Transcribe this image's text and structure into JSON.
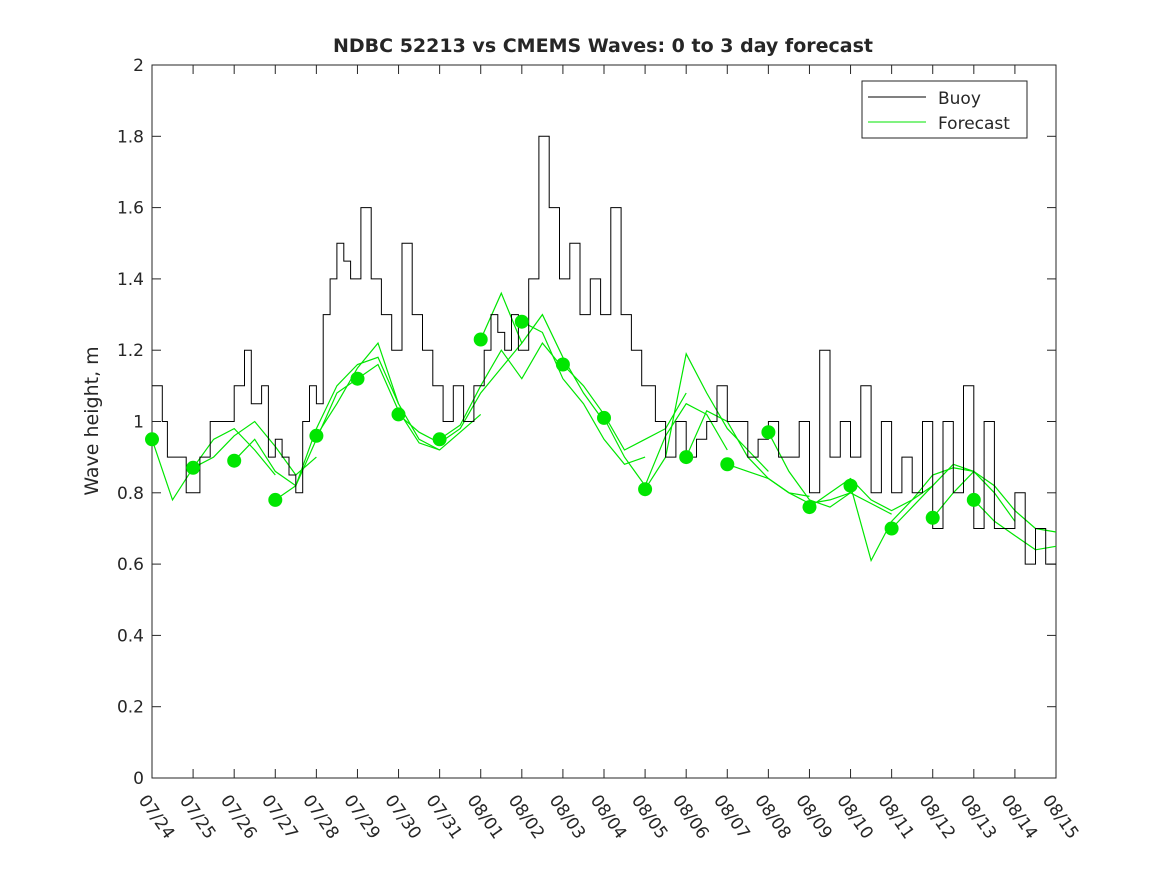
{
  "chart_data": {
    "type": "line",
    "title": "NDBC 52213 vs CMEMS Waves: 0 to 3 day forecast",
    "xlabel": "",
    "ylabel": "Wave height, m",
    "ylim": [
      0,
      2
    ],
    "yticks": [
      0,
      0.2,
      0.4,
      0.6,
      0.8,
      1,
      1.2,
      1.4,
      1.6,
      1.8,
      2
    ],
    "ytick_labels": [
      "0",
      "0.2",
      "0.4",
      "0.6",
      "0.8",
      "1",
      "1.2",
      "1.4",
      "1.6",
      "1.8",
      "2"
    ],
    "xlim": [
      "07/24",
      "08/15"
    ],
    "xtick_labels": [
      "07/24",
      "07/25",
      "07/26",
      "07/27",
      "07/28",
      "07/29",
      "07/30",
      "07/31",
      "08/01",
      "08/02",
      "08/03",
      "08/04",
      "08/05",
      "08/06",
      "08/07",
      "08/08",
      "08/09",
      "08/10",
      "08/11",
      "08/12",
      "08/13",
      "08/14",
      "08/15"
    ],
    "grid": false,
    "legend_position": "top-right",
    "colors": {
      "buoy": "#000000",
      "forecast": "#00e600",
      "axis": "#262626"
    },
    "series": [
      {
        "name": "Buoy",
        "x": [
          "07/24 00:00",
          "07/24 06:00",
          "07/24 09:00",
          "07/24 14:00",
          "07/24 20:00",
          "07/25 04:00",
          "07/25 10:00",
          "07/25 16:00",
          "07/26 00:00",
          "07/26 06:00",
          "07/26 10:00",
          "07/26 16:00",
          "07/26 20:00",
          "07/27 00:00",
          "07/27 04:00",
          "07/27 08:00",
          "07/27 12:00",
          "07/27 16:00",
          "07/27 20:00",
          "07/28 00:00",
          "07/28 04:00",
          "07/28 08:00",
          "07/28 12:00",
          "07/28 16:00",
          "07/28 20:00",
          "07/29 02:00",
          "07/29 08:00",
          "07/29 14:00",
          "07/29 20:00",
          "07/30 02:00",
          "07/30 08:00",
          "07/30 14:00",
          "07/30 20:00",
          "07/31 02:00",
          "07/31 08:00",
          "07/31 14:00",
          "07/31 20:00",
          "08/01 02:00",
          "08/01 06:00",
          "08/01 10:00",
          "08/01 14:00",
          "08/01 18:00",
          "08/01 22:00",
          "08/02 04:00",
          "08/02 10:00",
          "08/02 16:00",
          "08/02 22:00",
          "08/03 04:00",
          "08/03 10:00",
          "08/03 16:00",
          "08/03 22:00",
          "08/04 04:00",
          "08/04 10:00",
          "08/04 16:00",
          "08/04 22:00",
          "08/05 06:00",
          "08/05 12:00",
          "08/05 18:00",
          "08/06 00:00",
          "08/06 06:00",
          "08/06 12:00",
          "08/06 18:00",
          "08/07 00:00",
          "08/07 06:00",
          "08/07 12:00",
          "08/07 18:00",
          "08/08 00:00",
          "08/08 06:00",
          "08/08 12:00",
          "08/08 18:00",
          "08/09 00:00",
          "08/09 06:00",
          "08/09 12:00",
          "08/09 18:00",
          "08/10 00:00",
          "08/10 06:00",
          "08/10 12:00",
          "08/10 18:00",
          "08/11 00:00",
          "08/11 06:00",
          "08/11 12:00",
          "08/11 18:00",
          "08/12 00:00",
          "08/12 06:00",
          "08/12 12:00",
          "08/12 18:00",
          "08/13 00:00",
          "08/13 06:00",
          "08/13 12:00",
          "08/13 18:00",
          "08/14 00:00",
          "08/14 06:00",
          "08/14 12:00",
          "08/14 18:00"
        ],
        "values": [
          1.1,
          1.0,
          0.9,
          0.9,
          0.8,
          0.9,
          1.0,
          1.0,
          1.1,
          1.2,
          1.05,
          1.1,
          0.9,
          0.95,
          0.9,
          0.85,
          0.8,
          1.0,
          1.1,
          1.05,
          1.3,
          1.4,
          1.5,
          1.45,
          1.4,
          1.6,
          1.4,
          1.3,
          1.2,
          1.5,
          1.3,
          1.2,
          1.1,
          1.0,
          1.1,
          1.0,
          1.1,
          1.2,
          1.3,
          1.25,
          1.2,
          1.3,
          1.2,
          1.4,
          1.8,
          1.6,
          1.4,
          1.5,
          1.3,
          1.4,
          1.3,
          1.6,
          1.3,
          1.2,
          1.1,
          1.0,
          0.9,
          1.0,
          0.9,
          0.95,
          1.0,
          1.1,
          1.0,
          1.0,
          0.9,
          0.95,
          1.0,
          0.9,
          0.9,
          1.0,
          0.8,
          1.2,
          0.9,
          1.0,
          0.9,
          1.1,
          0.8,
          1.0,
          0.8,
          0.9,
          0.8,
          1.0,
          0.7,
          1.0,
          0.8,
          1.1,
          0.7,
          1.0,
          0.7,
          0.7,
          0.8,
          0.6,
          0.7,
          0.6
        ]
      },
      {
        "name": "Forecast",
        "markers": {
          "x": [
            "07/24",
            "07/25",
            "07/26",
            "07/27",
            "07/28",
            "07/29",
            "07/30",
            "07/31",
            "08/01",
            "08/02",
            "08/03",
            "08/04",
            "08/05",
            "08/06",
            "08/07",
            "08/08",
            "08/09",
            "08/10",
            "08/11",
            "08/12",
            "08/13"
          ],
          "values": [
            0.95,
            0.87,
            0.89,
            0.78,
            0.96,
            1.12,
            1.02,
            0.95,
            1.23,
            1.28,
            1.16,
            1.01,
            0.81,
            0.9,
            0.88,
            0.97,
            0.76,
            0.82,
            0.7,
            0.73,
            0.78
          ]
        },
        "runs": [
          {
            "x": [
              "07/24",
              "07/24 12:00",
              "07/25",
              "07/25 12:00",
              "07/26",
              "07/26 12:00",
              "07/27"
            ],
            "values": [
              0.95,
              0.78,
              0.87,
              0.95,
              0.98,
              0.92,
              0.85
            ]
          },
          {
            "x": [
              "07/25",
              "07/25 12:00",
              "07/26",
              "07/26 12:00",
              "07/27",
              "07/27 12:00",
              "07/28"
            ],
            "values": [
              0.87,
              0.9,
              0.96,
              1.0,
              0.93,
              0.85,
              0.9
            ]
          },
          {
            "x": [
              "07/26",
              "07/26 12:00",
              "07/27",
              "07/27 12:00",
              "07/28",
              "07/28 12:00",
              "07/29"
            ],
            "values": [
              0.89,
              0.95,
              0.86,
              0.82,
              0.95,
              1.08,
              1.12
            ]
          },
          {
            "x": [
              "07/27",
              "07/27 12:00",
              "07/28",
              "07/28 12:00",
              "07/29",
              "07/29 12:00",
              "07/30"
            ],
            "values": [
              0.78,
              0.82,
              0.98,
              1.1,
              1.16,
              1.18,
              1.05
            ]
          },
          {
            "x": [
              "07/28",
              "07/28 12:00",
              "07/29",
              "07/29 12:00",
              "07/30",
              "07/30 12:00",
              "07/31"
            ],
            "values": [
              0.96,
              1.05,
              1.15,
              1.22,
              1.05,
              0.95,
              0.92
            ]
          },
          {
            "x": [
              "07/29",
              "07/29 12:00",
              "07/30",
              "07/30 12:00",
              "07/31",
              "07/31 12:00",
              "08/01"
            ],
            "values": [
              1.12,
              1.16,
              1.03,
              0.94,
              0.92,
              0.97,
              1.02
            ]
          },
          {
            "x": [
              "07/30",
              "07/30 12:00",
              "07/31",
              "07/31 12:00",
              "08/01",
              "08/01 12:00",
              "08/02"
            ],
            "values": [
              1.02,
              0.97,
              0.94,
              0.98,
              1.08,
              1.15,
              1.22
            ]
          },
          {
            "x": [
              "07/31",
              "07/31 12:00",
              "08/01",
              "08/01 12:00",
              "08/02",
              "08/02 12:00",
              "08/03"
            ],
            "values": [
              0.95,
              0.99,
              1.1,
              1.2,
              1.12,
              1.22,
              1.15
            ]
          },
          {
            "x": [
              "08/01",
              "08/01 12:00",
              "08/02",
              "08/02 12:00",
              "08/03",
              "08/03 12:00",
              "08/04"
            ],
            "values": [
              1.23,
              1.36,
              1.22,
              1.3,
              1.18,
              1.08,
              1.0
            ]
          },
          {
            "x": [
              "08/02",
              "08/02 12:00",
              "08/03",
              "08/03 12:00",
              "08/04",
              "08/04 12:00",
              "08/05"
            ],
            "values": [
              1.28,
              1.25,
              1.12,
              1.05,
              0.95,
              0.88,
              0.9
            ]
          },
          {
            "x": [
              "08/03",
              "08/03 12:00",
              "08/04",
              "08/04 12:00",
              "08/05",
              "08/05 12:00",
              "08/06"
            ],
            "values": [
              1.16,
              1.1,
              1.02,
              0.92,
              0.95,
              0.98,
              1.08
            ]
          },
          {
            "x": [
              "08/04",
              "08/04 12:00",
              "08/05",
              "08/05 12:00",
              "08/06",
              "08/06 12:00",
              "08/07"
            ],
            "values": [
              1.01,
              0.9,
              0.82,
              0.96,
              1.05,
              1.02,
              0.92
            ]
          },
          {
            "x": [
              "08/05",
              "08/05 12:00",
              "08/06",
              "08/06 12:00",
              "08/07",
              "08/07 12:00",
              "08/08"
            ],
            "values": [
              0.81,
              0.9,
              1.19,
              1.08,
              0.98,
              0.92,
              0.86
            ]
          },
          {
            "x": [
              "08/06",
              "08/06 12:00",
              "08/07",
              "08/07 12:00",
              "08/08",
              "08/08 12:00",
              "08/09"
            ],
            "values": [
              0.9,
              1.03,
              1.0,
              0.9,
              0.84,
              0.8,
              0.79
            ]
          },
          {
            "x": [
              "08/07",
              "08/07 12:00",
              "08/08",
              "08/08 12:00",
              "08/09",
              "08/09 12:00",
              "08/10"
            ],
            "values": [
              0.88,
              0.86,
              0.84,
              0.8,
              0.77,
              0.78,
              0.8
            ]
          },
          {
            "x": [
              "08/08",
              "08/08 12:00",
              "08/09",
              "08/09 12:00",
              "08/10",
              "08/10 12:00",
              "08/11"
            ],
            "values": [
              0.97,
              0.86,
              0.78,
              0.76,
              0.8,
              0.77,
              0.74
            ]
          },
          {
            "x": [
              "08/09",
              "08/09 12:00",
              "08/10",
              "08/10 12:00",
              "08/11",
              "08/11 12:00",
              "08/12"
            ],
            "values": [
              0.76,
              0.8,
              0.84,
              0.78,
              0.75,
              0.78,
              0.82
            ]
          },
          {
            "x": [
              "08/10",
              "08/10 12:00",
              "08/11",
              "08/11 12:00",
              "08/12",
              "08/12 12:00",
              "08/13"
            ],
            "values": [
              0.82,
              0.61,
              0.72,
              0.78,
              0.85,
              0.87,
              0.86
            ]
          },
          {
            "x": [
              "08/11",
              "08/11 12:00",
              "08/12",
              "08/12 12:00",
              "08/13",
              "08/13 12:00",
              "08/14"
            ],
            "values": [
              0.7,
              0.76,
              0.82,
              0.88,
              0.86,
              0.8,
              0.72
            ]
          },
          {
            "x": [
              "08/12",
              "08/12 12:00",
              "08/13",
              "08/13 12:00",
              "08/14",
              "08/14 12:00",
              "08/15"
            ],
            "values": [
              0.73,
              0.8,
              0.86,
              0.82,
              0.75,
              0.7,
              0.69
            ]
          },
          {
            "x": [
              "08/13",
              "08/13 12:00",
              "08/14",
              "08/14 12:00",
              "08/15"
            ],
            "values": [
              0.78,
              0.72,
              0.68,
              0.64,
              0.65
            ]
          }
        ]
      }
    ]
  }
}
